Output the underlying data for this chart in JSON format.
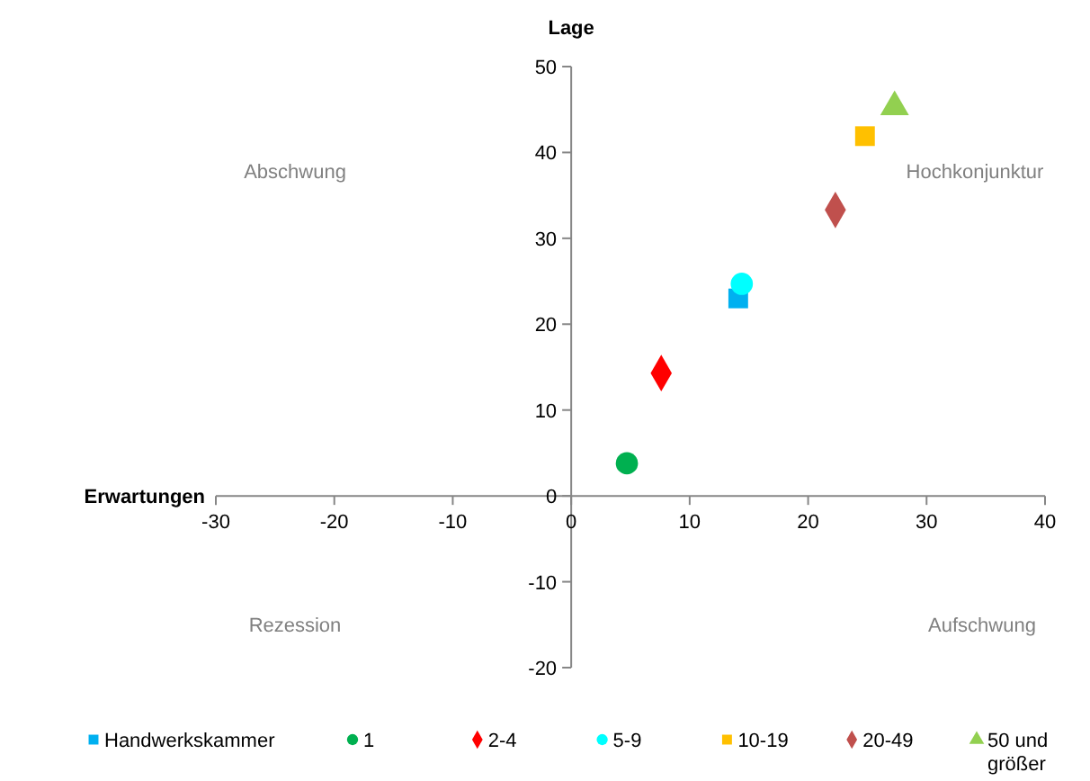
{
  "chart_data": {
    "type": "scatter",
    "xlabel": "Erwartungen",
    "ylabel": "Lage",
    "xlim": [
      -30,
      40
    ],
    "xticks": [
      -30,
      -20,
      -10,
      0,
      10,
      20,
      30,
      40
    ],
    "ylim": [
      -20,
      50
    ],
    "yticks": [
      -20,
      -10,
      0,
      10,
      20,
      30,
      40,
      50
    ],
    "grid": false,
    "legend": "bottom",
    "series": [
      {
        "name": "Handwerkskammer",
        "color": "#00b0f0",
        "marker": "square",
        "x": [
          14.1
        ],
        "values": [
          23
        ]
      },
      {
        "name": "1",
        "color": "#00b050",
        "marker": "circle",
        "x": [
          4.7
        ],
        "values": [
          3.8
        ]
      },
      {
        "name": "2-4",
        "color": "#ff0000",
        "marker": "diamond",
        "x": [
          7.6
        ],
        "values": [
          14.3
        ]
      },
      {
        "name": "5-9",
        "color": "#00ffff",
        "marker": "circle",
        "x": [
          14.4
        ],
        "values": [
          24.7
        ]
      },
      {
        "name": "10-19",
        "color": "#ffc000",
        "marker": "square",
        "x": [
          24.8
        ],
        "values": [
          41.9
        ]
      },
      {
        "name": "20-49",
        "color": "#c0504d",
        "marker": "diamond",
        "x": [
          22.3
        ],
        "values": [
          33.3
        ]
      },
      {
        "name": "50 und größer",
        "color": "#92d050",
        "marker": "triangle",
        "x": [
          27.3
        ],
        "values": [
          45.3
        ]
      }
    ],
    "annotations": [
      "Abschwung",
      "Hochkonjunktur",
      "Rezession",
      "Aufschwung"
    ]
  }
}
